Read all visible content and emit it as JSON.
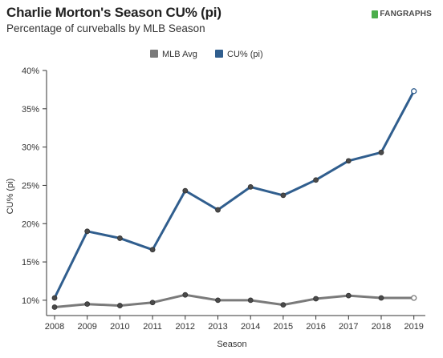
{
  "header": {
    "title": "Charlie Morton's Season CU% (pi)",
    "subtitle": "Percentage of curveballs by MLB Season",
    "logo_text": "FANGRAPHS"
  },
  "chart_data": {
    "type": "line",
    "title": "Charlie Morton's Season CU% (pi)",
    "subtitle": "Percentage of curveballs by MLB Season",
    "xlabel": "Season",
    "ylabel": "CU% (pi)",
    "x": [
      "2008",
      "2009",
      "2010",
      "2011",
      "2012",
      "2013",
      "2014",
      "2015",
      "2016",
      "2017",
      "2018",
      "2019"
    ],
    "ylim": [
      0.08,
      0.4
    ],
    "yticks": [
      0.1,
      0.15,
      0.2,
      0.25,
      0.3,
      0.35,
      0.4
    ],
    "ytick_labels": [
      "10%",
      "15%",
      "20%",
      "25%",
      "30%",
      "35%",
      "40%"
    ],
    "grid": false,
    "legend_position": "top",
    "series": [
      {
        "name": "MLB Avg",
        "color": "#7a7a7a",
        "values": [
          0.091,
          0.095,
          0.093,
          0.097,
          0.107,
          0.1,
          0.1,
          0.094,
          0.102,
          0.106,
          0.103,
          0.103
        ]
      },
      {
        "name": "CU% (pi)",
        "color": "#305e8e",
        "values": [
          0.103,
          0.19,
          0.181,
          0.166,
          0.243,
          0.218,
          0.248,
          0.237,
          0.257,
          0.282,
          0.293,
          0.373
        ]
      }
    ]
  }
}
